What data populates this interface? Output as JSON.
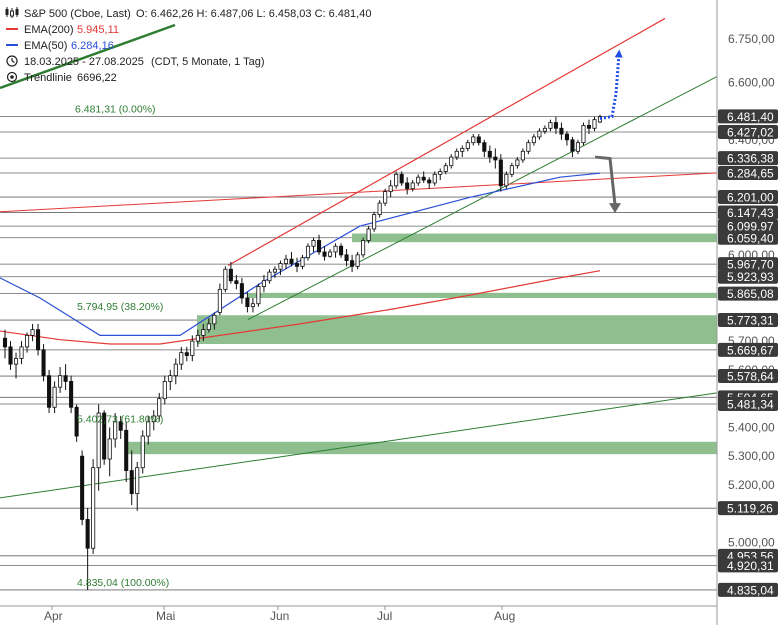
{
  "legend": {
    "title": "S&P 500 (Cboe, Last)",
    "ohlc": "O: 6.462,26   H: 6.487,06   L: 6.458,03   C: 6.481,40",
    "ema200_label": "EMA(200)",
    "ema200_value": "5.945,11",
    "ema50_label": "EMA(50)",
    "ema50_value": "6.284,16",
    "period": "18.03.2025 - 27.08.2025",
    "period_detail": "(CDT, 5 Monate, 1 Tag)",
    "trendline_label": "Trendlinie",
    "trendline_value": "6696,22",
    "icon_names": [
      "candles-icon",
      "calendar-clock-icon",
      "target-icon"
    ]
  },
  "colors": {
    "candle": "#111111",
    "ema200": "#e53935",
    "ema50": "#2a4fd8",
    "trend": "#2e7d32",
    "zone": "#8fbf8f",
    "hline": "#666666",
    "badge": "#3a3a3a",
    "arrow_up": "#1f4ee6",
    "arrow_down": "#666666"
  },
  "chart_data": {
    "type": "candlestick",
    "title": "S&P 500 (Cboe, Last)",
    "x_axis_labels": [
      "Apr",
      "Mai",
      "Jun",
      "Jul",
      "Aug"
    ],
    "y_axis_ticks": [
      "6.750,00",
      "6.600,00",
      "6.400,00",
      "6.000,00",
      "5.700,00",
      "5.600,00",
      "5.400,00",
      "5.300,00",
      "5.200,00",
      "5.000,00"
    ],
    "ylim": [
      4800,
      6820
    ],
    "price_levels": [
      "6.481,40",
      "6.427,02",
      "6.336,38",
      "6.284,65",
      "6.201,00",
      "6.147,43",
      "6.099,97",
      "6.059,40",
      "5.967,70",
      "5.923,93",
      "5.865,08",
      "5.773,31",
      "5.669,67",
      "5.578,64",
      "5.504,65",
      "5.481,34",
      "5.119,26",
      "4.953,56",
      "4.920,31",
      "4.835,04"
    ],
    "fibonacci_labels": [
      "6.481,31 (0.00%)",
      "5.794,95 (38.20%)",
      "5.402,73 (61.80%)",
      "4.835,04 (100.00%)"
    ],
    "support_zones": [
      [
        6044,
        6074
      ],
      [
        5690,
        5790
      ],
      [
        5307,
        5350
      ]
    ],
    "ema200_values": [
      5735,
      5705,
      5690,
      5690,
      5720,
      5760,
      5810,
      5860,
      5920,
      5945
    ],
    "ema50_values": [
      5920,
      5850,
      5720,
      5720,
      5900,
      6100,
      6200,
      6270,
      6284
    ],
    "candles": [
      [
        5710,
        5740,
        5640,
        5680
      ],
      [
        5680,
        5700,
        5600,
        5620
      ],
      [
        5620,
        5660,
        5570,
        5640
      ],
      [
        5640,
        5700,
        5620,
        5680
      ],
      [
        5680,
        5730,
        5660,
        5720
      ],
      [
        5720,
        5760,
        5700,
        5740
      ],
      [
        5740,
        5760,
        5650,
        5670
      ],
      [
        5670,
        5690,
        5560,
        5580
      ],
      [
        5580,
        5600,
        5450,
        5470
      ],
      [
        5470,
        5560,
        5450,
        5540
      ],
      [
        5540,
        5610,
        5520,
        5580
      ],
      [
        5580,
        5620,
        5530,
        5560
      ],
      [
        5560,
        5580,
        5450,
        5470
      ],
      [
        5470,
        5480,
        5350,
        5370
      ],
      [
        5300,
        5320,
        5060,
        5080
      ],
      [
        5080,
        5120,
        4835,
        4980
      ],
      [
        4980,
        5290,
        4960,
        5260
      ],
      [
        5260,
        5480,
        5180,
        5450
      ],
      [
        5450,
        5460,
        5270,
        5290
      ],
      [
        5290,
        5400,
        5230,
        5360
      ],
      [
        5360,
        5450,
        5330,
        5420
      ],
      [
        5420,
        5440,
        5360,
        5390
      ],
      [
        5390,
        5420,
        5210,
        5250
      ],
      [
        5250,
        5320,
        5130,
        5170
      ],
      [
        5170,
        5280,
        5110,
        5260
      ],
      [
        5260,
        5390,
        5240,
        5370
      ],
      [
        5370,
        5440,
        5340,
        5420
      ],
      [
        5420,
        5460,
        5390,
        5440
      ],
      [
        5440,
        5520,
        5420,
        5500
      ],
      [
        5500,
        5580,
        5480,
        5560
      ],
      [
        5560,
        5600,
        5530,
        5580
      ],
      [
        5580,
        5640,
        5550,
        5620
      ],
      [
        5620,
        5680,
        5600,
        5660
      ],
      [
        5660,
        5680,
        5630,
        5650
      ],
      [
        5650,
        5720,
        5630,
        5700
      ],
      [
        5700,
        5740,
        5680,
        5720
      ],
      [
        5720,
        5760,
        5700,
        5740
      ],
      [
        5740,
        5780,
        5730,
        5760
      ],
      [
        5760,
        5800,
        5740,
        5790
      ],
      [
        5800,
        5900,
        5790,
        5880
      ],
      [
        5880,
        5960,
        5870,
        5950
      ],
      [
        5950,
        5975,
        5900,
        5910
      ],
      [
        5910,
        5930,
        5880,
        5900
      ],
      [
        5900,
        5920,
        5830,
        5850
      ],
      [
        5850,
        5870,
        5800,
        5820
      ],
      [
        5820,
        5850,
        5800,
        5830
      ],
      [
        5830,
        5900,
        5820,
        5890
      ],
      [
        5890,
        5930,
        5870,
        5910
      ],
      [
        5910,
        5950,
        5900,
        5940
      ],
      [
        5940,
        5960,
        5920,
        5950
      ],
      [
        5950,
        5980,
        5930,
        5970
      ],
      [
        5970,
        6000,
        5950,
        5985
      ],
      [
        5985,
        6010,
        5960,
        5970
      ],
      [
        5970,
        5990,
        5940,
        5960
      ],
      [
        5960,
        6000,
        5950,
        5990
      ],
      [
        5990,
        6040,
        5980,
        6030
      ],
      [
        6030,
        6060,
        6010,
        6050
      ],
      [
        6050,
        6070,
        6000,
        6010
      ],
      [
        6010,
        6030,
        5980,
        5995
      ],
      [
        5995,
        6020,
        5990,
        6010
      ],
      [
        6010,
        6040,
        5990,
        6030
      ],
      [
        6030,
        6040,
        5990,
        6000
      ],
      [
        6000,
        6020,
        5960,
        5980
      ],
      [
        5980,
        6000,
        5940,
        5960
      ],
      [
        5960,
        6010,
        5950,
        6000
      ],
      [
        6000,
        6060,
        5990,
        6050
      ],
      [
        6050,
        6100,
        6040,
        6090
      ],
      [
        6090,
        6150,
        6080,
        6140
      ],
      [
        6140,
        6190,
        6130,
        6180
      ],
      [
        6180,
        6230,
        6170,
        6220
      ],
      [
        6220,
        6260,
        6200,
        6240
      ],
      [
        6240,
        6290,
        6230,
        6280
      ],
      [
        6280,
        6290,
        6240,
        6250
      ],
      [
        6250,
        6270,
        6210,
        6230
      ],
      [
        6230,
        6260,
        6220,
        6250
      ],
      [
        6250,
        6280,
        6240,
        6270
      ],
      [
        6270,
        6290,
        6250,
        6260
      ],
      [
        6260,
        6270,
        6230,
        6250
      ],
      [
        6250,
        6290,
        6240,
        6280
      ],
      [
        6280,
        6300,
        6260,
        6290
      ],
      [
        6290,
        6320,
        6280,
        6310
      ],
      [
        6310,
        6350,
        6300,
        6340
      ],
      [
        6340,
        6370,
        6330,
        6360
      ],
      [
        6360,
        6380,
        6340,
        6370
      ],
      [
        6370,
        6400,
        6360,
        6390
      ],
      [
        6390,
        6420,
        6380,
        6410
      ],
      [
        6410,
        6420,
        6380,
        6390
      ],
      [
        6390,
        6400,
        6340,
        6360
      ],
      [
        6360,
        6380,
        6320,
        6340
      ],
      [
        6340,
        6370,
        6300,
        6330
      ],
      [
        6330,
        6350,
        6220,
        6240
      ],
      [
        6240,
        6290,
        6230,
        6280
      ],
      [
        6280,
        6320,
        6270,
        6310
      ],
      [
        6310,
        6340,
        6300,
        6330
      ],
      [
        6330,
        6370,
        6320,
        6360
      ],
      [
        6360,
        6400,
        6350,
        6390
      ],
      [
        6390,
        6420,
        6380,
        6410
      ],
      [
        6410,
        6440,
        6400,
        6430
      ],
      [
        6430,
        6450,
        6420,
        6440
      ],
      [
        6440,
        6470,
        6430,
        6460
      ],
      [
        6460,
        6480,
        6420,
        6440
      ],
      [
        6440,
        6460,
        6400,
        6420
      ],
      [
        6420,
        6430,
        6380,
        6400
      ],
      [
        6400,
        6410,
        6340,
        6360
      ],
      [
        6360,
        6400,
        6350,
        6390
      ],
      [
        6390,
        6460,
        6380,
        6450
      ],
      [
        6450,
        6470,
        6420,
        6440
      ],
      [
        6440,
        6480,
        6430,
        6470
      ],
      [
        6462,
        6487,
        6458,
        6481
      ]
    ]
  }
}
